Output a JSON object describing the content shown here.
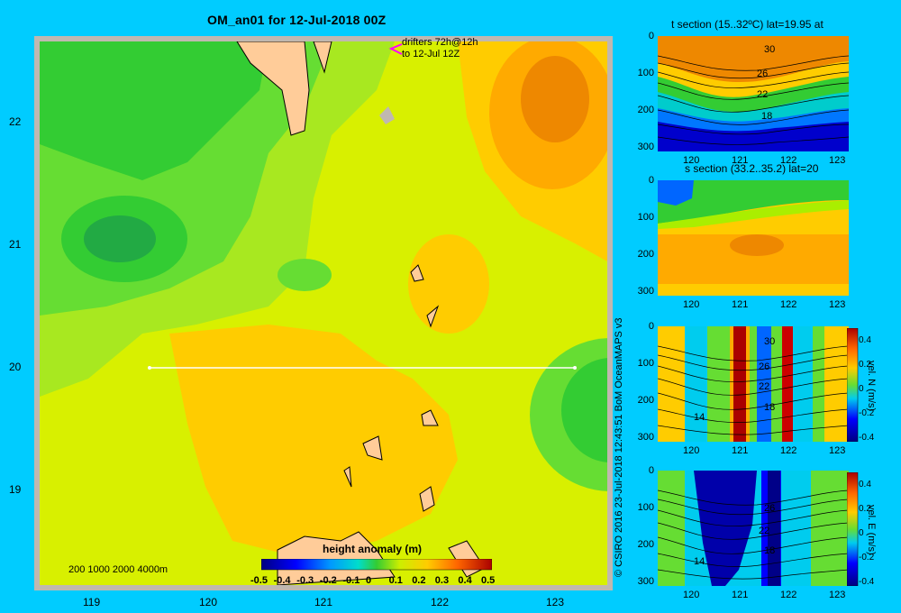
{
  "title": "OM_an01 for 12-Jul-2018 00Z",
  "main_map": {
    "lat_ticks": [
      "22",
      "21",
      "20",
      "19"
    ],
    "lon_ticks": [
      "119",
      "120",
      "121",
      "122",
      "123"
    ],
    "drifters_label_1": "drifters 72h@12h",
    "drifters_label_2": "to 12-Jul 12Z",
    "depth_legend": "200  1000  2000  4000m",
    "section_line_lat": 20,
    "colorbar": {
      "title": "height anomaly (m)",
      "ticks": [
        "-0.5",
        "-0.4",
        "-0.3",
        "-0.2",
        "-0.1",
        "0",
        "0.1",
        "0.2",
        "0.3",
        "0.4",
        "0.5"
      ],
      "range": [
        -0.5,
        0.5
      ]
    }
  },
  "panels": {
    "t_section": {
      "title": "t section (15..32ºC) lat=19.95 at",
      "y_ticks": [
        "0",
        "100",
        "200",
        "300"
      ],
      "x_ticks": [
        "120",
        "121",
        "122",
        "123"
      ],
      "contour_labels": [
        "30",
        "26",
        "22",
        "18"
      ]
    },
    "s_section": {
      "title": "s section (33.2..35.2) lat=20",
      "y_ticks": [
        "0",
        "100",
        "200",
        "300"
      ],
      "x_ticks": [
        "120",
        "121",
        "122",
        "123"
      ]
    },
    "vn_section": {
      "y_ticks": [
        "0",
        "100",
        "200",
        "300"
      ],
      "x_ticks": [
        "120",
        "121",
        "122",
        "123"
      ],
      "contour_labels": [
        "30",
        "26",
        "22",
        "18",
        "14"
      ],
      "cb_ticks": [
        "0.4",
        "0.2",
        "0",
        "-0.2",
        "-0.4"
      ],
      "cb_label": "vel. N (m/s)"
    },
    "ve_section": {
      "y_ticks": [
        "0",
        "100",
        "200",
        "300"
      ],
      "x_ticks": [
        "120",
        "121",
        "122",
        "123"
      ],
      "contour_labels": [
        "26",
        "22",
        "18",
        "14"
      ],
      "cb_ticks": [
        "0.4",
        "0.2",
        "0",
        "-0.2",
        "-0.4"
      ],
      "cb_label": "vel. E (m/s)"
    }
  },
  "credit": "© CSIRO 2016   23-Jul-2018 12:43:51 BoM OceanMAPS v3",
  "colors": {
    "background": "#00ccff",
    "land": "#ffcc99",
    "frame": "#c0b8b0",
    "track": "#ffffff",
    "drifter": "#ff00ff"
  }
}
